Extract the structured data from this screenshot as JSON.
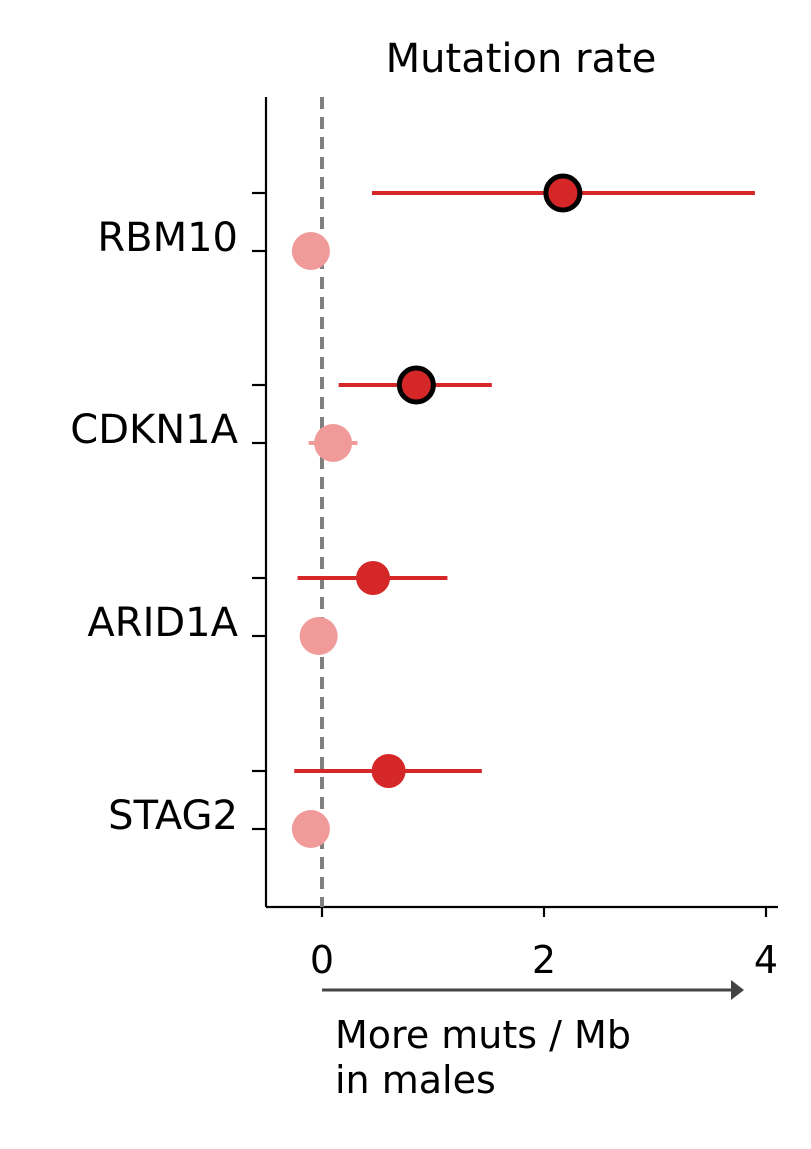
{
  "chart_data": {
    "type": "scatter",
    "title": "Mutation rate",
    "xlabel": "More muts / Mb\nin males",
    "xlim": [
      -0.5,
      4.1
    ],
    "xticks": [
      0,
      2,
      4
    ],
    "reference_line_x": 0,
    "categories": [
      "RBM10",
      "CDKN1A",
      "ARID1A",
      "STAG2"
    ],
    "series": [
      {
        "color": "#d62728",
        "points": [
          {
            "category": "RBM10",
            "x": 2.17,
            "lo": 0.45,
            "hi": 3.9,
            "highlighted": true
          },
          {
            "category": "CDKN1A",
            "x": 0.85,
            "lo": 0.15,
            "hi": 1.53,
            "highlighted": true
          },
          {
            "category": "ARID1A",
            "x": 0.46,
            "lo": -0.22,
            "hi": 1.13,
            "highlighted": false
          },
          {
            "category": "STAG2",
            "x": 0.6,
            "lo": -0.25,
            "hi": 1.44,
            "highlighted": false
          }
        ]
      },
      {
        "color": "#f09a9a",
        "points": [
          {
            "category": "RBM10",
            "x": -0.1,
            "lo": -0.25,
            "hi": 0.02
          },
          {
            "category": "CDKN1A",
            "x": 0.1,
            "lo": -0.12,
            "hi": 0.32
          },
          {
            "category": "ARID1A",
            "x": -0.03,
            "lo": -0.08,
            "hi": 0.03
          },
          {
            "category": "STAG2",
            "x": -0.1,
            "lo": -0.15,
            "hi": -0.05
          }
        ]
      }
    ]
  }
}
